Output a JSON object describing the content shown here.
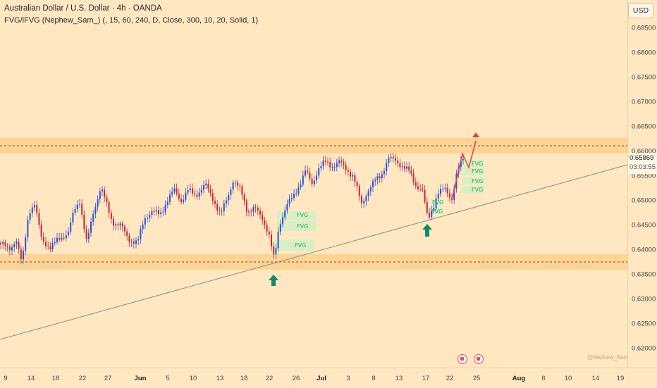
{
  "header": {
    "symbol_title": "Australian Dollar / U.S. Dollar · 4h · OANDA",
    "indicator": "FVG/iFVG (Nephew_Sam_) (, 15, 60, 240, D, Close, 300, 10, 20, Solid, 1)"
  },
  "currency_button": "USD",
  "price_axis": [
    "0.68500",
    "0.68000",
    "0.67500",
    "0.67000",
    "0.66500",
    "0.66000",
    "0.65500",
    "0.65000",
    "0.64500",
    "0.64000",
    "0.63500",
    "0.63000",
    "0.62500",
    "0.62000"
  ],
  "current_price": {
    "price": "0.65869",
    "countdown": "03:03:55"
  },
  "time_axis": [
    {
      "label": "9",
      "bold": false
    },
    {
      "label": "14",
      "bold": false
    },
    {
      "label": "18",
      "bold": false
    },
    {
      "label": "22",
      "bold": false
    },
    {
      "label": "27",
      "bold": false
    },
    {
      "label": "Jun",
      "bold": true
    },
    {
      "label": "5",
      "bold": false
    },
    {
      "label": "10",
      "bold": false
    },
    {
      "label": "13",
      "bold": false
    },
    {
      "label": "18",
      "bold": false
    },
    {
      "label": "22",
      "bold": false
    },
    {
      "label": "26",
      "bold": false
    },
    {
      "label": "Jul",
      "bold": true
    },
    {
      "label": "3",
      "bold": false
    },
    {
      "label": "8",
      "bold": false
    },
    {
      "label": "13",
      "bold": false
    },
    {
      "label": "17",
      "bold": false
    },
    {
      "label": "22",
      "bold": false
    },
    {
      "label": "25",
      "bold": false
    },
    {
      "label": "Aug",
      "bold": true
    },
    {
      "label": "6",
      "bold": false
    },
    {
      "label": "10",
      "bold": false
    },
    {
      "label": "14",
      "bold": false
    },
    {
      "label": "19",
      "bold": false
    }
  ],
  "fvg_label": "FVG",
  "watermark": "@Nephew_Sam_",
  "colors": {
    "background": "#ffe7c2",
    "zone": "#ffd08a",
    "bull_candle": "#2c4fd8",
    "bear_candle": "#c8263a",
    "fvg_box": "#d6f0c8",
    "arrow_up": "#0f8a6a",
    "projection": "#e0404a"
  },
  "icons": [
    "arrow-up-icon",
    "arrow-up-icon",
    "economic-event-icon",
    "economic-event-icon"
  ]
}
